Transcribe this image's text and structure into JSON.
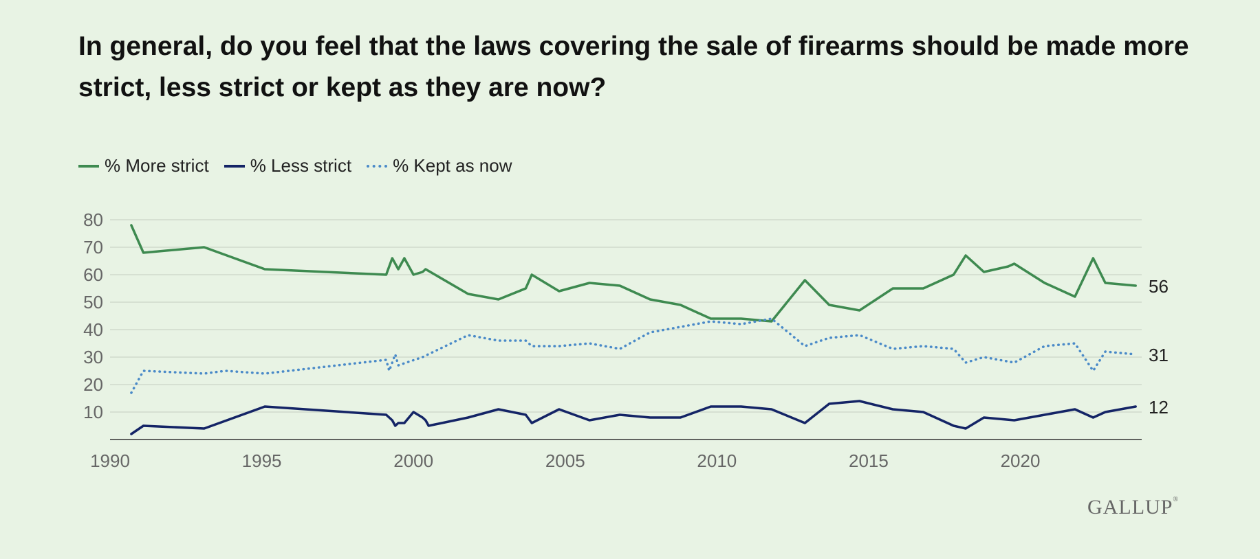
{
  "chart_data": {
    "type": "line",
    "title": "In general, do you feel that the laws covering the sale of firearms should be made more strict, less strict or kept as they are now?",
    "xlabel": "",
    "ylabel": "",
    "xlim": [
      1990,
      2024
    ],
    "ylim": [
      0,
      80
    ],
    "x_ticks": [
      1990,
      1995,
      2000,
      2005,
      2010,
      2015,
      2020
    ],
    "y_ticks": [
      10,
      20,
      30,
      40,
      50,
      60,
      70,
      80
    ],
    "grid": true,
    "legend_position": "top-left",
    "series": [
      {
        "name": "% More strict",
        "color": "#3e8a50",
        "style": "solid",
        "end_label": "56",
        "points": [
          [
            1990.7,
            78
          ],
          [
            1991.1,
            68
          ],
          [
            1993.1,
            70
          ],
          [
            1995.1,
            62
          ],
          [
            1999.1,
            60
          ],
          [
            1999.3,
            66
          ],
          [
            1999.5,
            62
          ],
          [
            1999.7,
            66
          ],
          [
            2000.0,
            60
          ],
          [
            2000.3,
            61
          ],
          [
            2000.4,
            62
          ],
          [
            2001.8,
            53
          ],
          [
            2002.8,
            51
          ],
          [
            2003.7,
            55
          ],
          [
            2003.9,
            60
          ],
          [
            2004.8,
            54
          ],
          [
            2005.8,
            57
          ],
          [
            2006.8,
            56
          ],
          [
            2007.8,
            51
          ],
          [
            2008.8,
            49
          ],
          [
            2009.8,
            44
          ],
          [
            2010.8,
            44
          ],
          [
            2011.8,
            43
          ],
          [
            2012.9,
            58
          ],
          [
            2013.7,
            49
          ],
          [
            2014.7,
            47
          ],
          [
            2015.8,
            55
          ],
          [
            2016.8,
            55
          ],
          [
            2017.8,
            60
          ],
          [
            2018.2,
            67
          ],
          [
            2018.8,
            61
          ],
          [
            2019.6,
            63
          ],
          [
            2019.8,
            64
          ],
          [
            2020.8,
            57
          ],
          [
            2021.8,
            52
          ],
          [
            2022.4,
            66
          ],
          [
            2022.8,
            57
          ],
          [
            2023.8,
            56
          ]
        ]
      },
      {
        "name": "% Less strict",
        "color": "#142466",
        "style": "solid",
        "end_label": "12",
        "points": [
          [
            1990.7,
            2
          ],
          [
            1991.1,
            5
          ],
          [
            1993.1,
            4
          ],
          [
            1995.1,
            12
          ],
          [
            1999.1,
            9
          ],
          [
            1999.3,
            7
          ],
          [
            1999.4,
            5
          ],
          [
            1999.5,
            6
          ],
          [
            1999.7,
            6
          ],
          [
            2000.0,
            10
          ],
          [
            2000.3,
            8
          ],
          [
            2000.4,
            7
          ],
          [
            2000.5,
            5
          ],
          [
            2001.8,
            8
          ],
          [
            2002.8,
            11
          ],
          [
            2003.7,
            9
          ],
          [
            2003.9,
            6
          ],
          [
            2004.8,
            11
          ],
          [
            2005.8,
            7
          ],
          [
            2006.8,
            9
          ],
          [
            2007.8,
            8
          ],
          [
            2008.8,
            8
          ],
          [
            2009.8,
            12
          ],
          [
            2010.8,
            12
          ],
          [
            2011.8,
            11
          ],
          [
            2012.9,
            6
          ],
          [
            2013.7,
            13
          ],
          [
            2014.7,
            14
          ],
          [
            2015.8,
            11
          ],
          [
            2016.8,
            10
          ],
          [
            2017.8,
            5
          ],
          [
            2018.2,
            4
          ],
          [
            2018.8,
            8
          ],
          [
            2019.8,
            7
          ],
          [
            2020.8,
            9
          ],
          [
            2021.8,
            11
          ],
          [
            2022.4,
            8
          ],
          [
            2022.8,
            10
          ],
          [
            2023.8,
            12
          ]
        ]
      },
      {
        "name": "% Kept as now",
        "color": "#4a8ac8",
        "style": "dotted",
        "end_label": "31",
        "points": [
          [
            1990.7,
            17
          ],
          [
            1991.1,
            25
          ],
          [
            1993.1,
            24
          ],
          [
            1993.8,
            25
          ],
          [
            1995.1,
            24
          ],
          [
            1999.1,
            29
          ],
          [
            1999.2,
            25
          ],
          [
            1999.4,
            31
          ],
          [
            1999.5,
            27
          ],
          [
            2000.3,
            30
          ],
          [
            2001.8,
            38
          ],
          [
            2002.8,
            36
          ],
          [
            2003.7,
            36
          ],
          [
            2003.9,
            34
          ],
          [
            2004.8,
            34
          ],
          [
            2005.8,
            35
          ],
          [
            2006.8,
            33
          ],
          [
            2007.8,
            39
          ],
          [
            2008.8,
            41
          ],
          [
            2009.8,
            43
          ],
          [
            2010.8,
            42
          ],
          [
            2011.8,
            44
          ],
          [
            2012.9,
            34
          ],
          [
            2013.7,
            37
          ],
          [
            2014.7,
            38
          ],
          [
            2015.8,
            33
          ],
          [
            2016.8,
            34
          ],
          [
            2017.8,
            33
          ],
          [
            2018.2,
            28
          ],
          [
            2018.8,
            30
          ],
          [
            2019.8,
            28
          ],
          [
            2020.8,
            34
          ],
          [
            2021.8,
            35
          ],
          [
            2022.4,
            25
          ],
          [
            2022.8,
            32
          ],
          [
            2023.8,
            31
          ]
        ]
      }
    ]
  },
  "branding": {
    "logo_text": "GALLUP",
    "logo_mark": "®"
  }
}
